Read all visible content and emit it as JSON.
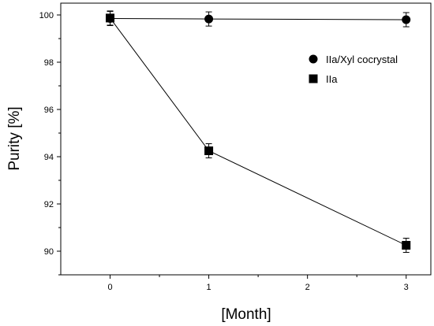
{
  "chart_data": {
    "type": "line",
    "xlabel": "[Month]",
    "ylabel": "Purity [%]",
    "xlim": [
      -0.5,
      3.25
    ],
    "ylim": [
      89.0,
      100.5
    ],
    "xticks": [
      0,
      1,
      2,
      3
    ],
    "yticks": [
      90,
      92,
      94,
      96,
      98,
      100
    ],
    "grid": false,
    "legend_position": "top-right",
    "series": [
      {
        "name": "IIa/Xyl cocrystal",
        "marker": "circle",
        "color": "#000000",
        "x": [
          0,
          1,
          3
        ],
        "y": [
          99.85,
          99.83,
          99.8
        ],
        "error": [
          0.2,
          0.2,
          0.2
        ]
      },
      {
        "name": "IIa",
        "marker": "square",
        "color": "#000000",
        "x": [
          0,
          1,
          3
        ],
        "y": [
          99.87,
          94.25,
          90.25
        ],
        "error": [
          0.2,
          0.2,
          0.2
        ]
      }
    ]
  }
}
